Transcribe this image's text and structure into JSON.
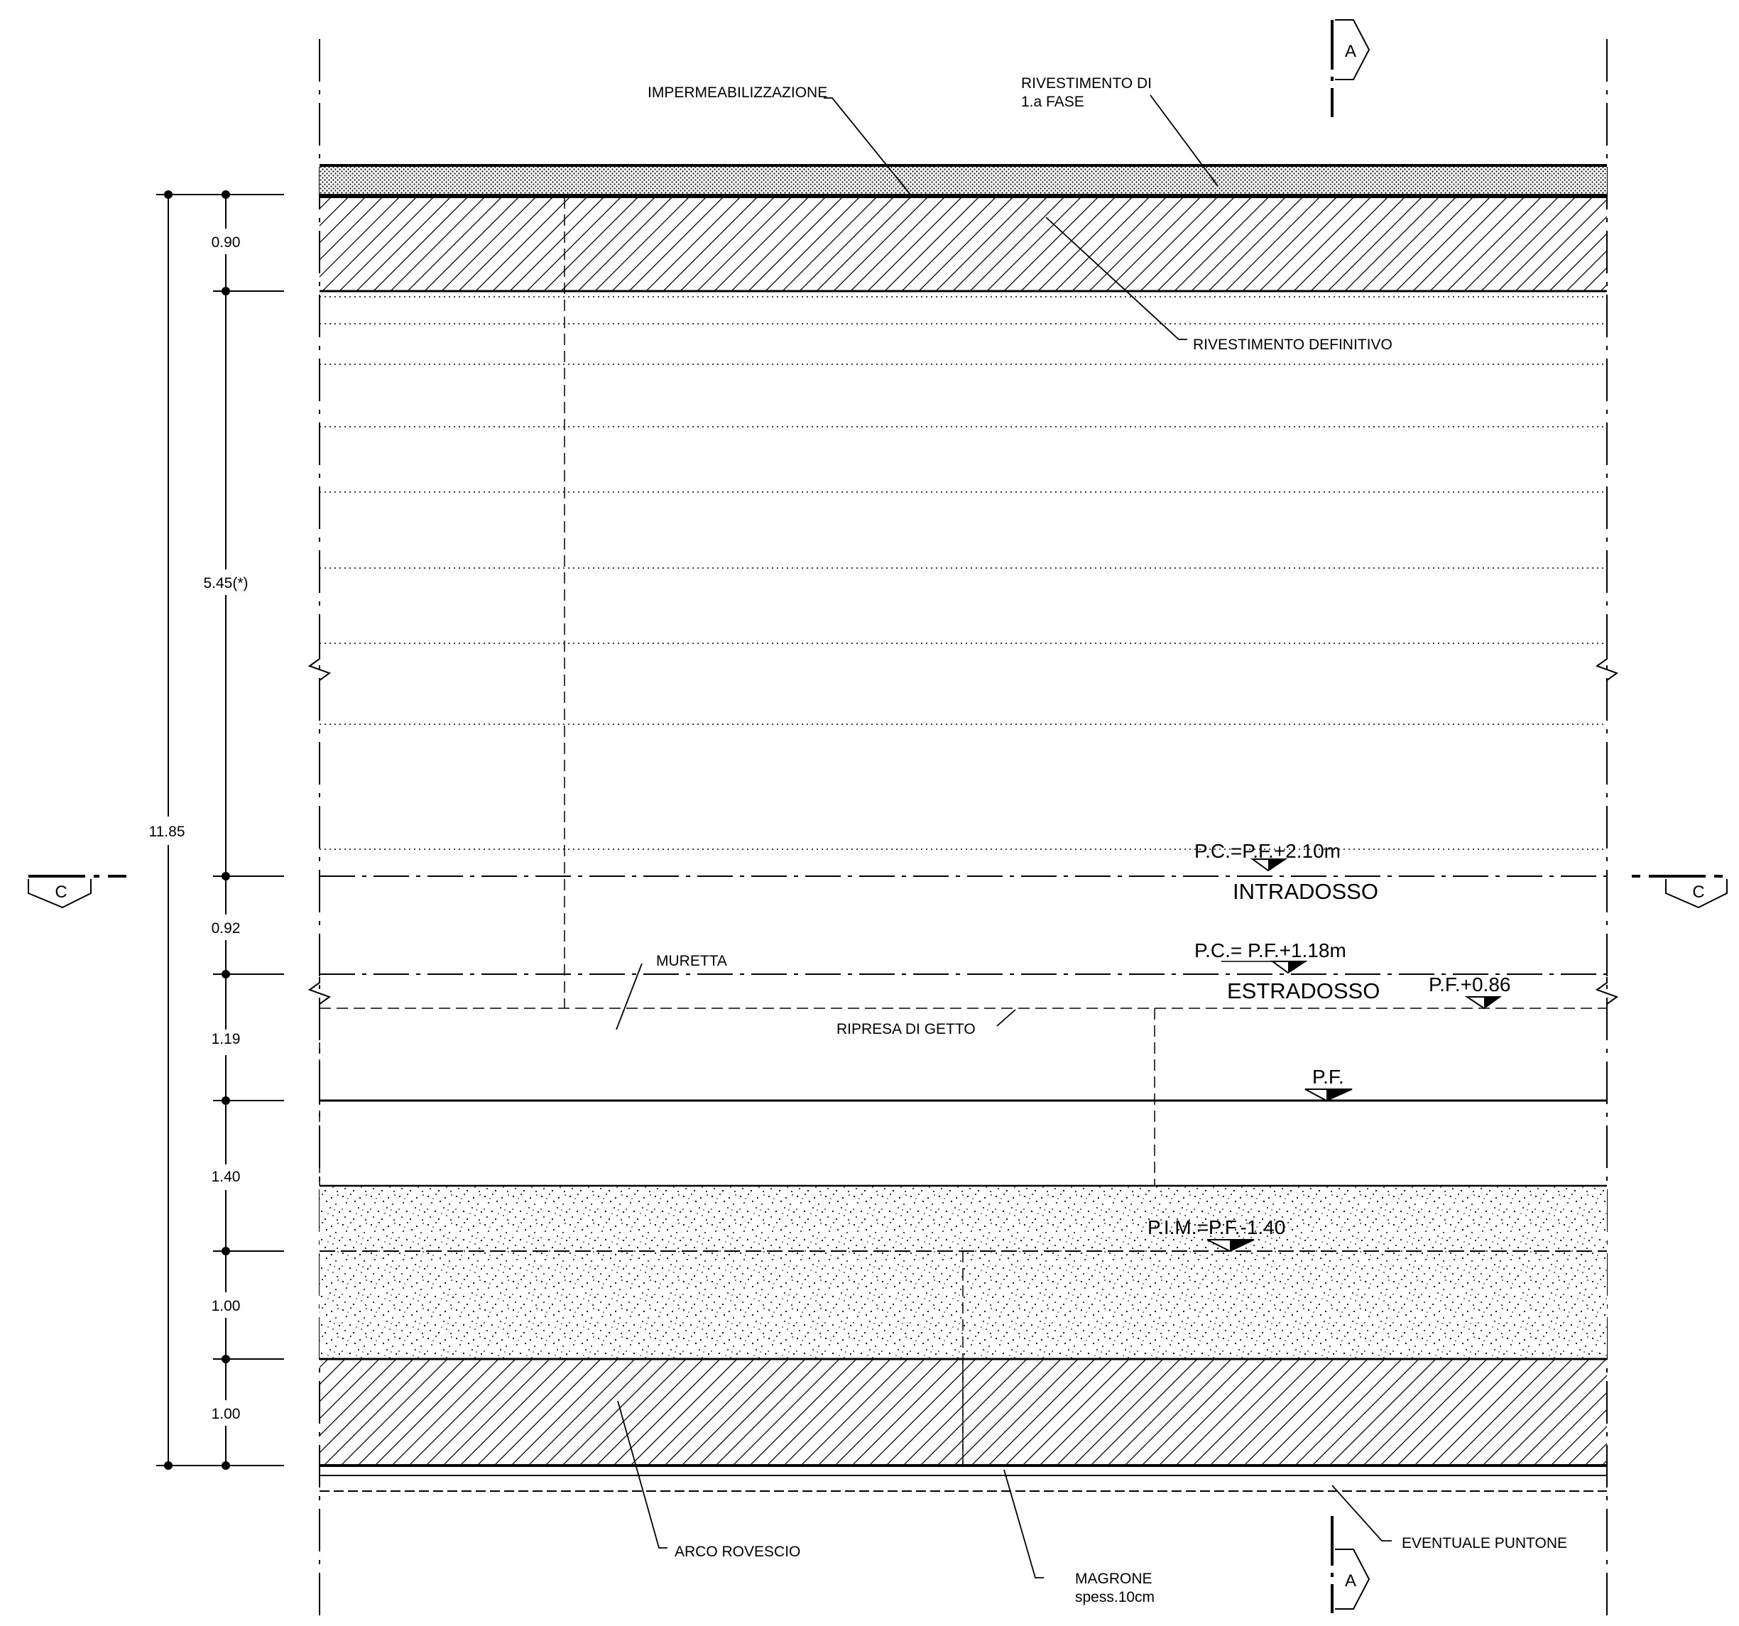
{
  "labels": {
    "impermeabilizzazione": "IMPERMEABILIZZAZIONE",
    "rivestimento_prima_fase_1": "RIVESTIMENTO  DI",
    "rivestimento_prima_fase_2": "1.a  FASE",
    "rivestimento_definitivo": "RIVESTIMENTO  DEFINITIVO",
    "muretta": "MURETTA",
    "ripresa_di_getto": "RIPRESA  DI  GETTO",
    "arco_rovescio": "ARCO  ROVESCIO",
    "magrone_1": "MAGRONE",
    "magrone_2": "spess.10cm",
    "eventuale_puntone": "EVENTUALE  PUNTONE"
  },
  "levels": {
    "pc_intradosso": "P.C.=P.F.+2.10m",
    "intradosso": "INTRADOSSO",
    "pc_estradosso": "P.C.=  P.F.+1.18m",
    "estradosso": "ESTRADOSSO",
    "pf_plus": "P.F.+0.86",
    "pf": "P.F.",
    "pim": "P.I.M.=P.F.-1.40"
  },
  "sections": {
    "a_top": "A",
    "a_bottom": "A",
    "c_left": "C",
    "c_right": "C"
  },
  "dimensions": {
    "total": "11.85",
    "d1": "0.90",
    "d2": "5.45(*)",
    "d3": "0.92",
    "d4": "1.19",
    "d5": "1.40",
    "d6": "1.00",
    "d7": "1.00"
  }
}
